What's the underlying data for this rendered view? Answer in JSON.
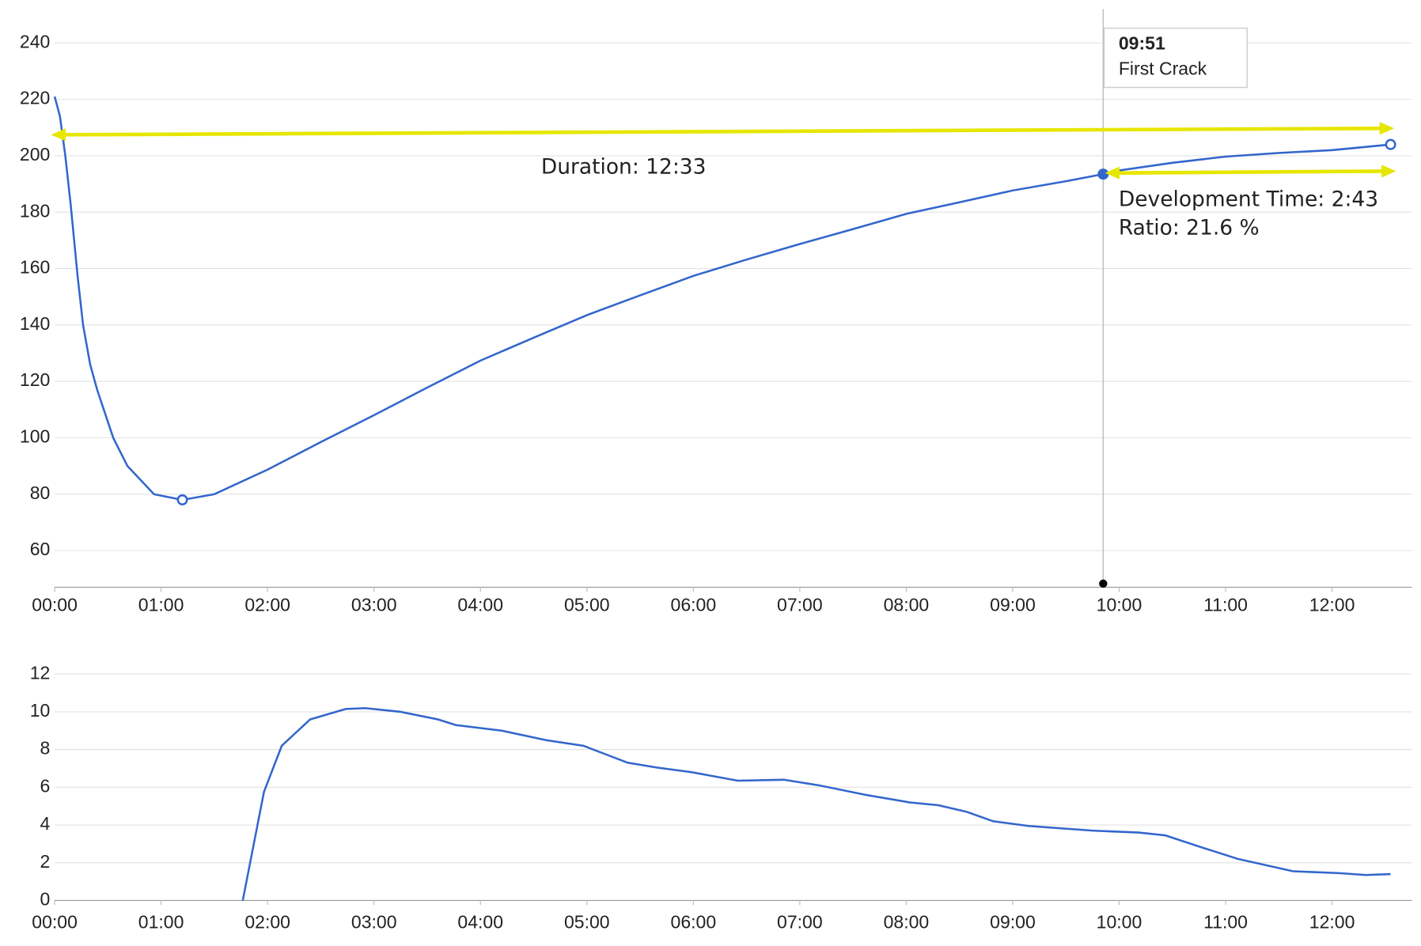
{
  "chart_data": [
    {
      "type": "line",
      "color": "#3366cc",
      "grid": true,
      "x": [
        0,
        3,
        6,
        9,
        11,
        13,
        16,
        20,
        24,
        33,
        41,
        56,
        72,
        90,
        120,
        150,
        180,
        210,
        240,
        270,
        300,
        330,
        360,
        390,
        420,
        450,
        480,
        510,
        540,
        570,
        591,
        600,
        630,
        660,
        690,
        720,
        753
      ],
      "values": [
        221,
        214,
        200,
        183,
        170,
        157,
        140,
        126,
        117,
        100,
        90,
        80,
        78,
        80,
        88.7,
        98.5,
        108,
        117.8,
        127.4,
        135.5,
        143.5,
        150.5,
        157.4,
        163.2,
        168.7,
        174,
        179.4,
        183.5,
        187.7,
        191,
        193.5,
        194.8,
        197.5,
        199.7,
        201,
        202,
        204
      ],
      "xlim": [
        0,
        765
      ],
      "ylim": [
        47,
        252
      ],
      "xticks": [
        {
          "value": 0,
          "label": "00:00"
        },
        {
          "value": 60,
          "label": "01:00"
        },
        {
          "value": 120,
          "label": "02:00"
        },
        {
          "value": 180,
          "label": "03:00"
        },
        {
          "value": 240,
          "label": "04:00"
        },
        {
          "value": 300,
          "label": "05:00"
        },
        {
          "value": 360,
          "label": "06:00"
        },
        {
          "value": 420,
          "label": "07:00"
        },
        {
          "value": 480,
          "label": "08:00"
        },
        {
          "value": 540,
          "label": "09:00"
        },
        {
          "value": 600,
          "label": "10:00"
        },
        {
          "value": 660,
          "label": "11:00"
        },
        {
          "value": 720,
          "label": "12:00"
        }
      ],
      "yticks": [
        60,
        80,
        100,
        120,
        140,
        160,
        180,
        200,
        220,
        240
      ],
      "markers": [
        {
          "x": 72,
          "y": 78,
          "filled": false
        },
        {
          "x": 591,
          "y": 193.5,
          "filled": true
        },
        {
          "x": 753,
          "y": 204,
          "filled": false
        }
      ],
      "annotations": {
        "tooltip_time": "09:51",
        "tooltip_label": "First Crack",
        "duration": "Duration: 12:33",
        "development": "Development Time: 2:43",
        "ratio": "Ratio: 21.6 %"
      },
      "annotation_color": "#e6e600",
      "annotation_text_color": "#c8c21e"
    },
    {
      "type": "line",
      "color": "#3366cc",
      "grid": true,
      "x": [
        106,
        118,
        128,
        144,
        164,
        175,
        195,
        216,
        226,
        252,
        277,
        298,
        323,
        339,
        359,
        385,
        411,
        431,
        457,
        482,
        498,
        514,
        529,
        549,
        585,
        611,
        626,
        647,
        667,
        698,
        724,
        739,
        753
      ],
      "values": [
        0,
        5.76,
        8.2,
        9.6,
        10.15,
        10.2,
        10.0,
        9.6,
        9.3,
        9.0,
        8.5,
        8.2,
        7.3,
        7.05,
        6.8,
        6.35,
        6.4,
        6.1,
        5.6,
        5.2,
        5.05,
        4.7,
        4.2,
        3.95,
        3.7,
        3.6,
        3.45,
        2.8,
        2.2,
        1.55,
        1.45,
        1.35,
        1.4
      ],
      "xlim": [
        0,
        765
      ],
      "ylim": [
        0,
        12.5
      ],
      "xticks": [
        {
          "value": 0,
          "label": "00:00"
        },
        {
          "value": 60,
          "label": "01:00"
        },
        {
          "value": 120,
          "label": "02:00"
        },
        {
          "value": 180,
          "label": "03:00"
        },
        {
          "value": 240,
          "label": "04:00"
        },
        {
          "value": 300,
          "label": "05:00"
        },
        {
          "value": 360,
          "label": "06:00"
        },
        {
          "value": 420,
          "label": "07:00"
        },
        {
          "value": 480,
          "label": "08:00"
        },
        {
          "value": 540,
          "label": "09:00"
        },
        {
          "value": 600,
          "label": "10:00"
        },
        {
          "value": 660,
          "label": "11:00"
        },
        {
          "value": 720,
          "label": "12:00"
        }
      ],
      "yticks": [
        0,
        2,
        4,
        6,
        8,
        10,
        12
      ]
    }
  ]
}
